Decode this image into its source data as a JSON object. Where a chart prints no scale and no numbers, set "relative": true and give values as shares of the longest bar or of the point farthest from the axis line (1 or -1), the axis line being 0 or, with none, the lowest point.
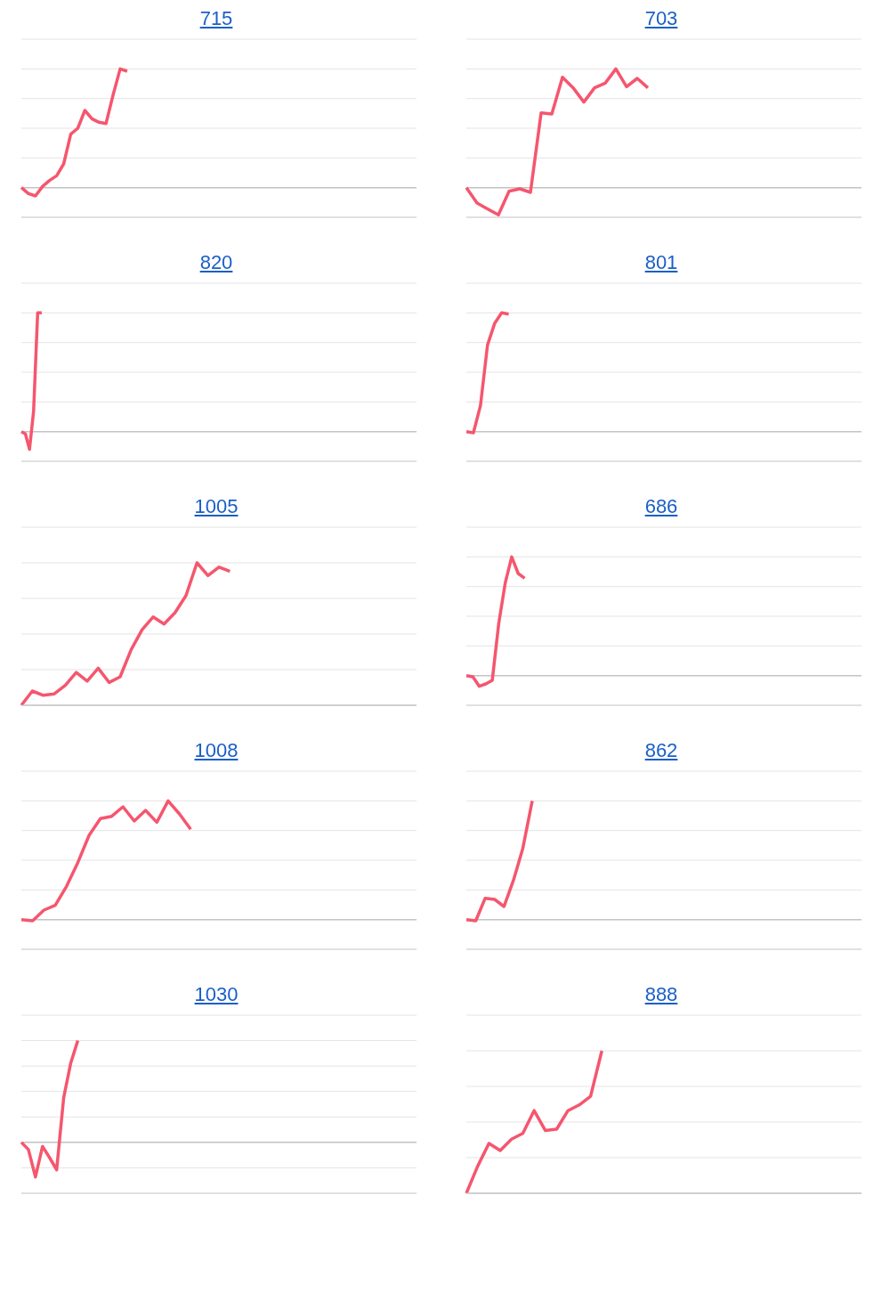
{
  "chart_data": [
    {
      "type": "line",
      "title": "715",
      "relative": true,
      "grid": "y",
      "marker": "none",
      "categories": [
        null,
        null,
        null,
        null,
        null,
        null,
        null,
        null,
        null,
        null,
        null,
        null,
        null,
        null,
        null,
        null,
        null,
        null,
        null,
        null,
        null,
        null,
        null,
        null,
        null,
        null,
        null,
        null,
        null,
        null,
        null,
        null,
        null,
        null,
        null,
        null,
        null,
        null,
        null,
        null,
        null,
        null,
        null,
        null,
        null,
        null,
        null,
        null,
        null,
        null,
        null,
        null,
        null,
        null,
        null,
        null,
        null
      ],
      "series": [
        {
          "color": "#f5566e",
          "values": [
            0,
            -0.05,
            -0.07,
            0.01,
            0.06,
            0.1,
            0.2,
            0.45,
            0.5,
            0.65,
            0.58,
            0.55,
            0.54,
            0.78,
            1,
            0.98,
            null,
            null,
            null,
            null,
            null,
            null,
            null,
            null,
            null,
            null,
            null,
            null,
            null,
            null,
            null,
            null,
            null,
            null,
            null,
            null,
            null,
            null,
            null,
            null,
            null,
            null,
            null,
            null,
            null,
            null,
            null,
            null,
            null,
            null,
            null,
            null,
            null,
            null,
            null,
            null,
            null
          ]
        }
      ]
    },
    {
      "type": "line",
      "title": "703",
      "relative": true,
      "grid": "y",
      "marker": "none",
      "categories": [
        null,
        null,
        null,
        null,
        null,
        null,
        null,
        null,
        null,
        null,
        null,
        null,
        null,
        null,
        null,
        null,
        null,
        null,
        null,
        null,
        null,
        null,
        null,
        null,
        null,
        null,
        null,
        null,
        null,
        null,
        null,
        null,
        null,
        null,
        null,
        null,
        null,
        null
      ],
      "series": [
        {
          "color": "#f5566e",
          "values": [
            0,
            -0.13,
            -0.18,
            -0.23,
            -0.03,
            -0.01,
            -0.04,
            0.63,
            0.62,
            0.93,
            0.84,
            0.72,
            0.84,
            0.88,
            1,
            0.85,
            0.92,
            0.84,
            null,
            null,
            null,
            null,
            null,
            null,
            null,
            null,
            null,
            null,
            null,
            null,
            null,
            null,
            null,
            null,
            null,
            null,
            null,
            null
          ]
        }
      ]
    },
    {
      "type": "line",
      "title": "820",
      "relative": true,
      "grid": "y",
      "marker": "none",
      "categories": [
        null,
        null,
        null,
        null,
        null,
        null,
        null,
        null,
        null,
        null,
        null,
        null,
        null,
        null,
        null,
        null,
        null,
        null,
        null,
        null,
        null,
        null,
        null,
        null,
        null,
        null,
        null,
        null,
        null,
        null,
        null,
        null,
        null,
        null,
        null,
        null,
        null,
        null,
        null,
        null,
        null,
        null,
        null,
        null,
        null,
        null,
        null,
        null,
        null,
        null,
        null,
        null,
        null,
        null,
        null,
        null,
        null,
        null,
        null,
        null,
        null,
        null,
        null,
        null,
        null,
        null,
        null,
        null,
        null,
        null,
        null,
        null,
        null,
        null,
        null,
        null,
        null,
        null,
        null,
        null,
        null,
        null,
        null,
        null,
        null,
        null,
        null,
        null,
        null,
        null,
        null,
        null,
        null,
        null,
        null,
        null,
        null,
        null
      ],
      "series": [
        {
          "color": "#f5566e",
          "values": [
            0,
            -0.02,
            -0.15,
            0.17,
            1,
            1,
            null,
            null,
            null,
            null,
            null,
            null,
            null,
            null,
            null,
            null,
            null,
            null,
            null,
            null,
            null,
            null,
            null,
            null,
            null,
            null,
            null,
            null,
            null,
            null,
            null,
            null,
            null,
            null,
            null,
            null,
            null,
            null,
            null,
            null,
            null,
            null,
            null,
            null,
            null,
            null,
            null,
            null,
            null,
            null,
            null,
            null,
            null,
            null,
            null,
            null,
            null,
            null,
            null,
            null,
            null,
            null,
            null,
            null,
            null,
            null,
            null,
            null,
            null,
            null,
            null,
            null,
            null,
            null,
            null,
            null,
            null,
            null,
            null,
            null,
            null,
            null,
            null,
            null,
            null,
            null,
            null,
            null,
            null,
            null,
            null,
            null,
            null,
            null,
            null,
            null,
            null,
            null
          ]
        }
      ]
    },
    {
      "type": "line",
      "title": "801",
      "relative": true,
      "grid": "y",
      "marker": "none",
      "categories": [
        null,
        null,
        null,
        null,
        null,
        null,
        null,
        null,
        null,
        null,
        null,
        null,
        null,
        null,
        null,
        null,
        null,
        null,
        null,
        null,
        null,
        null,
        null,
        null,
        null,
        null,
        null,
        null,
        null,
        null,
        null,
        null,
        null,
        null,
        null,
        null,
        null,
        null,
        null,
        null,
        null,
        null,
        null,
        null,
        null,
        null,
        null,
        null,
        null,
        null,
        null,
        null,
        null,
        null,
        null,
        null,
        null
      ],
      "series": [
        {
          "color": "#f5566e",
          "values": [
            0,
            -0.01,
            0.22,
            0.73,
            0.91,
            1,
            0.99,
            null,
            null,
            null,
            null,
            null,
            null,
            null,
            null,
            null,
            null,
            null,
            null,
            null,
            null,
            null,
            null,
            null,
            null,
            null,
            null,
            null,
            null,
            null,
            null,
            null,
            null,
            null,
            null,
            null,
            null,
            null,
            null,
            null,
            null,
            null,
            null,
            null,
            null,
            null,
            null,
            null,
            null,
            null,
            null,
            null,
            null,
            null,
            null,
            null,
            null
          ]
        }
      ]
    },
    {
      "type": "line",
      "title": "1005",
      "relative": true,
      "grid": "y",
      "marker": "none",
      "categories": [
        null,
        null,
        null,
        null,
        null,
        null,
        null,
        null,
        null,
        null,
        null,
        null,
        null,
        null,
        null,
        null,
        null,
        null,
        null,
        null,
        null,
        null,
        null,
        null,
        null,
        null,
        null,
        null,
        null,
        null,
        null,
        null,
        null,
        null,
        null,
        null,
        null
      ],
      "series": [
        {
          "color": "#f5566e",
          "values": [
            0,
            0.1,
            0.07,
            0.08,
            0.14,
            0.23,
            0.17,
            0.26,
            0.16,
            0.2,
            0.39,
            0.53,
            0.62,
            0.57,
            0.65,
            0.77,
            1,
            0.91,
            0.97,
            0.94,
            null,
            null,
            null,
            null,
            null,
            null,
            null,
            null,
            null,
            null,
            null,
            null,
            null,
            null,
            null,
            null,
            null
          ]
        }
      ]
    },
    {
      "type": "line",
      "title": "686",
      "relative": true,
      "grid": "y",
      "marker": "none",
      "categories": [
        null,
        null,
        null,
        null,
        null,
        null,
        null,
        null,
        null,
        null,
        null,
        null,
        null,
        null,
        null,
        null,
        null,
        null,
        null,
        null,
        null,
        null,
        null,
        null,
        null,
        null,
        null,
        null,
        null,
        null,
        null,
        null,
        null,
        null,
        null,
        null,
        null,
        null,
        null,
        null,
        null,
        null,
        null,
        null,
        null,
        null,
        null,
        null,
        null,
        null,
        null,
        null,
        null,
        null,
        null,
        null,
        null,
        null,
        null,
        null,
        null,
        null
      ],
      "series": [
        {
          "color": "#f5566e",
          "values": [
            0,
            -0.01,
            -0.09,
            -0.07,
            -0.04,
            0.44,
            0.78,
            1,
            0.86,
            0.82,
            null,
            null,
            null,
            null,
            null,
            null,
            null,
            null,
            null,
            null,
            null,
            null,
            null,
            null,
            null,
            null,
            null,
            null,
            null,
            null,
            null,
            null,
            null,
            null,
            null,
            null,
            null,
            null,
            null,
            null,
            null,
            null,
            null,
            null,
            null,
            null,
            null,
            null,
            null,
            null,
            null,
            null,
            null,
            null,
            null,
            null,
            null,
            null,
            null,
            null,
            null,
            null
          ]
        }
      ]
    },
    {
      "type": "line",
      "title": "1008",
      "relative": true,
      "grid": "y",
      "marker": "none",
      "categories": [
        null,
        null,
        null,
        null,
        null,
        null,
        null,
        null,
        null,
        null,
        null,
        null,
        null,
        null,
        null,
        null,
        null,
        null,
        null,
        null,
        null,
        null,
        null,
        null,
        null,
        null,
        null,
        null,
        null,
        null,
        null,
        null,
        null,
        null,
        null,
        null
      ],
      "series": [
        {
          "color": "#f5566e",
          "values": [
            0,
            -0.01,
            0.08,
            0.12,
            0.28,
            0.48,
            0.71,
            0.85,
            0.87,
            0.95,
            0.83,
            0.92,
            0.82,
            1,
            0.89,
            0.76,
            null,
            null,
            null,
            null,
            null,
            null,
            null,
            null,
            null,
            null,
            null,
            null,
            null,
            null,
            null,
            null,
            null,
            null,
            null,
            null
          ]
        }
      ]
    },
    {
      "type": "line",
      "title": "862",
      "relative": true,
      "grid": "y",
      "marker": "none",
      "categories": [
        null,
        null,
        null,
        null,
        null,
        null,
        null,
        null,
        null,
        null,
        null,
        null,
        null,
        null,
        null,
        null,
        null,
        null,
        null,
        null,
        null,
        null,
        null,
        null,
        null,
        null,
        null,
        null,
        null,
        null,
        null,
        null,
        null,
        null,
        null,
        null,
        null,
        null,
        null,
        null,
        null,
        null,
        null
      ],
      "series": [
        {
          "color": "#f5566e",
          "values": [
            0,
            -0.01,
            0.18,
            0.17,
            0.11,
            0.33,
            0.6,
            1,
            null,
            null,
            null,
            null,
            null,
            null,
            null,
            null,
            null,
            null,
            null,
            null,
            null,
            null,
            null,
            null,
            null,
            null,
            null,
            null,
            null,
            null,
            null,
            null,
            null,
            null,
            null,
            null,
            null,
            null,
            null,
            null,
            null,
            null,
            null
          ]
        }
      ]
    },
    {
      "type": "line",
      "title": "1030",
      "relative": true,
      "grid": "y",
      "marker": "none",
      "categories": [
        null,
        null,
        null,
        null,
        null,
        null,
        null,
        null,
        null,
        null,
        null,
        null,
        null,
        null,
        null,
        null,
        null,
        null,
        null,
        null,
        null,
        null,
        null,
        null,
        null,
        null,
        null,
        null,
        null,
        null,
        null,
        null,
        null,
        null,
        null,
        null,
        null,
        null,
        null,
        null,
        null,
        null,
        null,
        null,
        null,
        null,
        null,
        null,
        null,
        null,
        null,
        null,
        null,
        null,
        null,
        null,
        null
      ],
      "series": [
        {
          "color": "#f5566e",
          "values": [
            0,
            -0.07,
            -0.34,
            -0.04,
            -0.15,
            -0.27,
            0.44,
            0.78,
            1,
            null,
            null,
            null,
            null,
            null,
            null,
            null,
            null,
            null,
            null,
            null,
            null,
            null,
            null,
            null,
            null,
            null,
            null,
            null,
            null,
            null,
            null,
            null,
            null,
            null,
            null,
            null,
            null,
            null,
            null,
            null,
            null,
            null,
            null,
            null,
            null,
            null,
            null,
            null,
            null,
            null,
            null,
            null,
            null,
            null,
            null,
            null,
            null
          ]
        }
      ]
    },
    {
      "type": "line",
      "title": "888",
      "relative": true,
      "grid": "y",
      "marker": "none",
      "categories": [
        null,
        null,
        null,
        null,
        null,
        null,
        null,
        null,
        null,
        null,
        null,
        null,
        null,
        null,
        null,
        null,
        null,
        null,
        null,
        null,
        null,
        null,
        null,
        null,
        null,
        null,
        null,
        null,
        null,
        null,
        null,
        null,
        null,
        null,
        null,
        null
      ],
      "series": [
        {
          "color": "#f5566e",
          "values": [
            0,
            0.19,
            0.35,
            0.3,
            0.38,
            0.42,
            0.58,
            0.44,
            0.45,
            0.58,
            0.62,
            0.68,
            1,
            null,
            null,
            null,
            null,
            null,
            null,
            null,
            null,
            null,
            null,
            null,
            null,
            null,
            null,
            null,
            null,
            null,
            null,
            null,
            null,
            null,
            null,
            null
          ]
        }
      ]
    }
  ]
}
